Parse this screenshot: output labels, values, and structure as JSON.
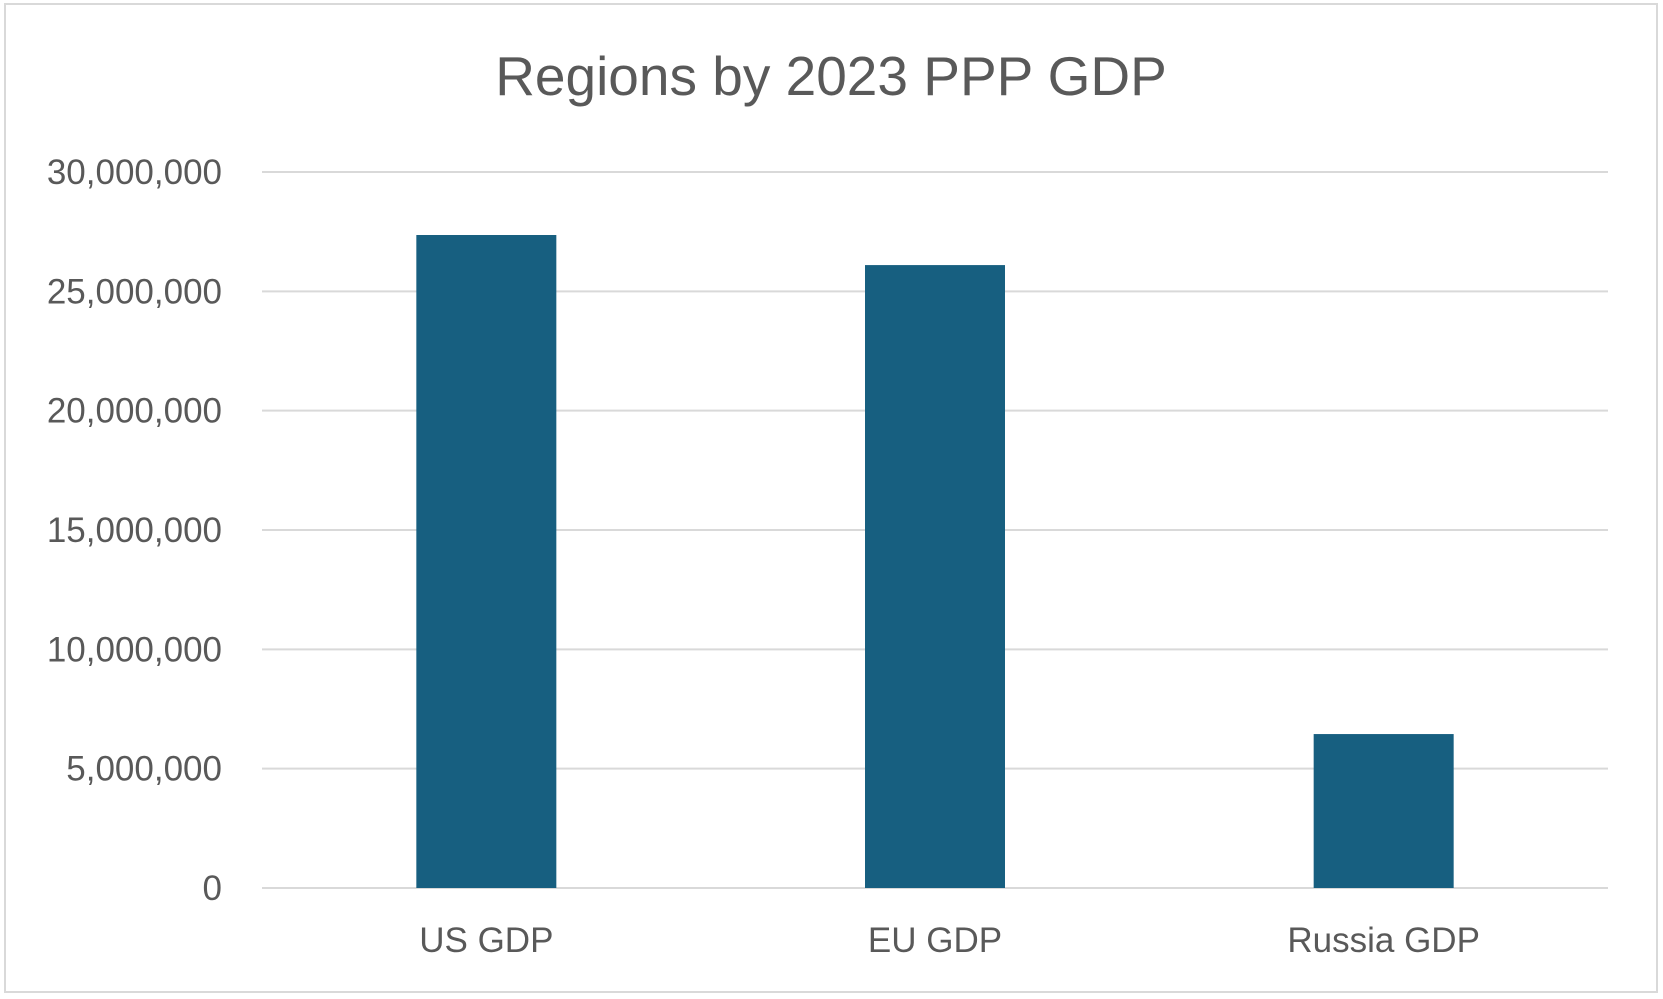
{
  "chart_data": {
    "type": "bar",
    "title": "Regions by 2023 PPP GDP",
    "categories": [
      "US GDP",
      "EU GDP",
      "Russia GDP"
    ],
    "values": [
      27360000,
      26100000,
      6450000
    ],
    "ylim": [
      0,
      30000000
    ],
    "ytick_values": [
      0,
      5000000,
      10000000,
      15000000,
      20000000,
      25000000,
      30000000
    ],
    "ytick_labels": [
      "0",
      "5,000,000",
      "10,000,000",
      "15,000,000",
      "20,000,000",
      "25,000,000",
      "30,000,000"
    ],
    "xlabel": "",
    "ylabel": "",
    "grid": true,
    "legend": "none",
    "colors": {
      "bar": "#175f80",
      "grid": "#d9d9d9",
      "text": "#595959",
      "border": "#d9d9d9"
    }
  }
}
